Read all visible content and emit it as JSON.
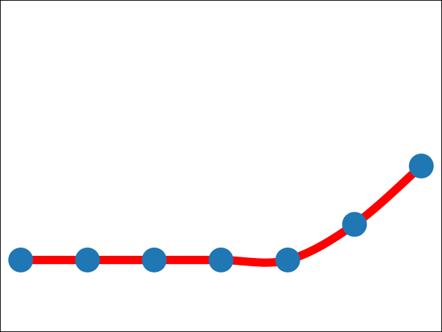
{
  "chart_data": {
    "type": "line",
    "title": "",
    "xlabel": "",
    "ylabel": "",
    "x": [
      0,
      1,
      2,
      3,
      4,
      5,
      6
    ],
    "series": [
      {
        "values": [
          0,
          0,
          0,
          0,
          0,
          0.55,
          1.45
        ],
        "line_color": "#ff0000",
        "marker_color": "#1f77b4",
        "smooth": true
      }
    ],
    "xlim": [
      -0.3,
      6.3
    ],
    "ylim": [
      -1.1,
      4.0
    ],
    "axes_visible": false,
    "grid": false
  }
}
